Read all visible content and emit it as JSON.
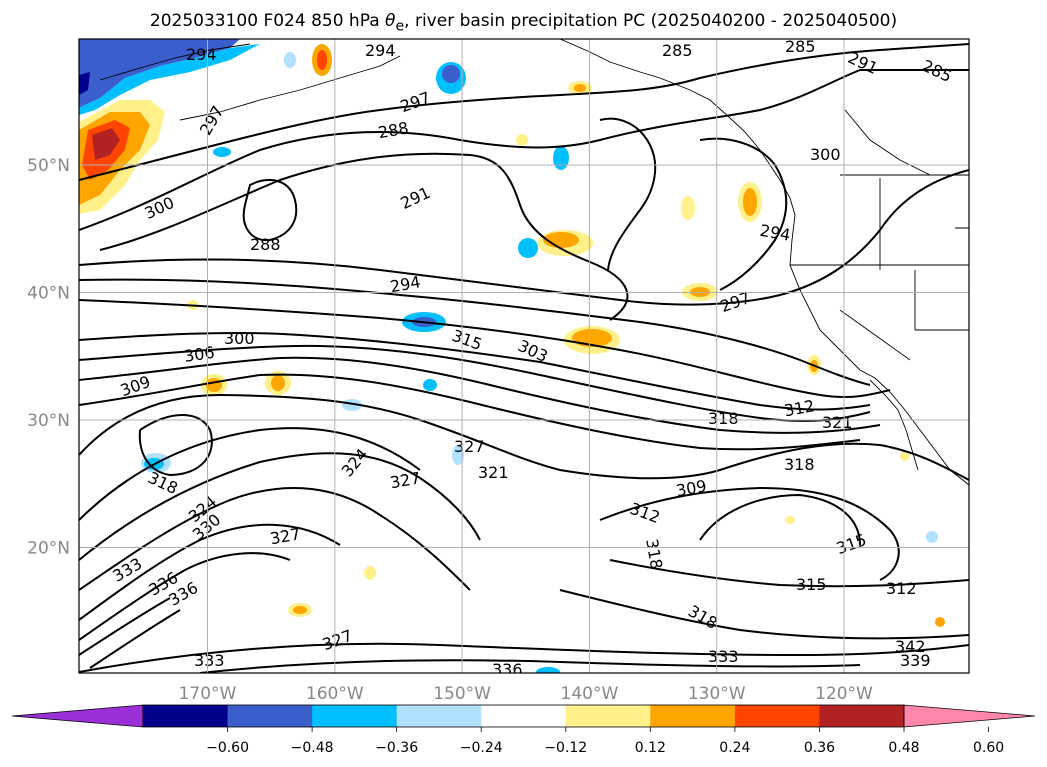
{
  "title": {
    "prefix": "2025033100 F024 850 hPa ",
    "symbol": "θ",
    "subscript": "e",
    "suffix": ", river basin precipitation PC (2025040200 - 2025040500)"
  },
  "map": {
    "lat_ticks": [
      {
        "label": "50°N",
        "lat": 50
      },
      {
        "label": "40°N",
        "lat": 40
      },
      {
        "label": "30°N",
        "lat": 30
      },
      {
        "label": "20°N",
        "lat": 20
      }
    ],
    "lon_ticks": [
      {
        "label": "170°W",
        "lon": -170
      },
      {
        "label": "160°W",
        "lon": -160
      },
      {
        "label": "150°W",
        "lon": -150
      },
      {
        "label": "140°W",
        "lon": -140
      },
      {
        "label": "130°W",
        "lon": -130
      },
      {
        "label": "120°W",
        "lon": -120
      }
    ],
    "contour_labels": [
      "294",
      "294",
      "297",
      "285",
      "285",
      "291",
      "285",
      "297",
      "288",
      "300",
      "300",
      "291",
      "288",
      "294",
      "294",
      "297",
      "306",
      "300",
      "315",
      "303",
      "309",
      "318",
      "312",
      "321",
      "327",
      "318",
      "324",
      "327",
      "321",
      "309",
      "318",
      "312",
      "318",
      "324",
      "330",
      "327",
      "315",
      "333",
      "336",
      "336",
      "312",
      "327",
      "315",
      "318",
      "333",
      "336",
      "339",
      "342",
      "333"
    ]
  },
  "colorbar": {
    "labels": [
      "−0.60",
      "−0.48",
      "−0.36",
      "−0.24",
      "−0.12",
      "0.12",
      "0.24",
      "0.36",
      "0.48",
      "0.60"
    ],
    "colors": [
      "#9b30d9",
      "#00008b",
      "#3a5fcd",
      "#00bfff",
      "#b0e2ff",
      "#ffffff",
      "#fff08a",
      "#ffa500",
      "#ff4500",
      "#b22222",
      "#ff88aa"
    ]
  }
}
